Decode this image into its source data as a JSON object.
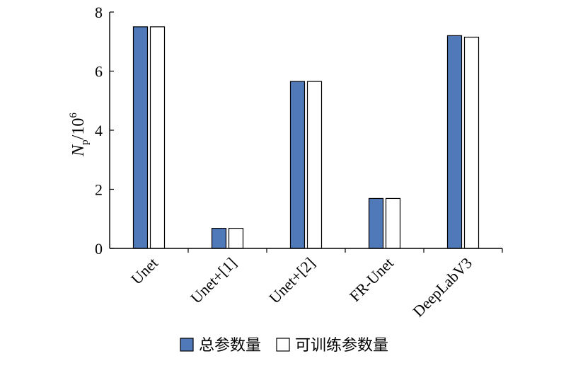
{
  "chart_data": {
    "type": "bar",
    "categories": [
      "Unet",
      "Unet+[1]",
      "Unet+[2]",
      "FR-Unet",
      "DeepLabV3"
    ],
    "series": [
      {
        "name": "总参数量",
        "values": [
          7.5,
          0.68,
          5.65,
          1.69,
          7.2
        ],
        "color": "#4f79b8"
      },
      {
        "name": "可训练参数量",
        "values": [
          7.5,
          0.68,
          5.65,
          1.69,
          7.15
        ],
        "color": "#ffffff"
      }
    ],
    "ylabel": {
      "main": "N",
      "sub": "p",
      "rest": "/10",
      "sup": "6"
    },
    "ylim": [
      0,
      8
    ],
    "yticks": [
      "0",
      "2",
      "4",
      "6",
      "8"
    ],
    "grid": false,
    "legend_placement": "bottom"
  }
}
